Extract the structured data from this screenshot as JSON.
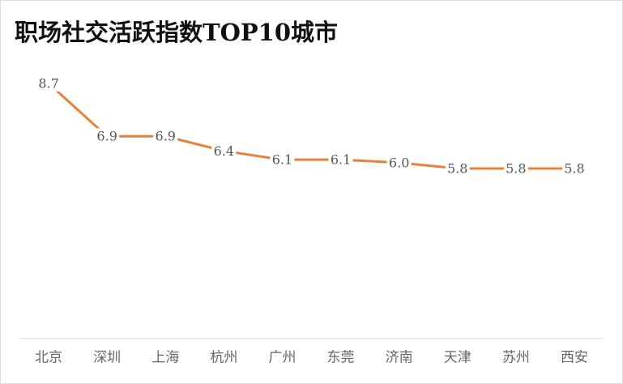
{
  "chart_data": {
    "type": "line",
    "title": "职场社交活跃指数TOP10城市",
    "categories": [
      "北京",
      "深圳",
      "上海",
      "杭州",
      "广州",
      "东莞",
      "济南",
      "天津",
      "苏州",
      "西安"
    ],
    "values": [
      8.7,
      6.9,
      6.9,
      6.4,
      6.1,
      6.1,
      6.0,
      5.8,
      5.8,
      5.8
    ],
    "value_labels": [
      "8.7",
      "6.9",
      "6.9",
      "6.4",
      "6.1",
      "6.1",
      "6.0",
      "5.8",
      "5.8",
      "5.8"
    ],
    "color": "#e8803a",
    "ylim": [
      0,
      10
    ]
  }
}
